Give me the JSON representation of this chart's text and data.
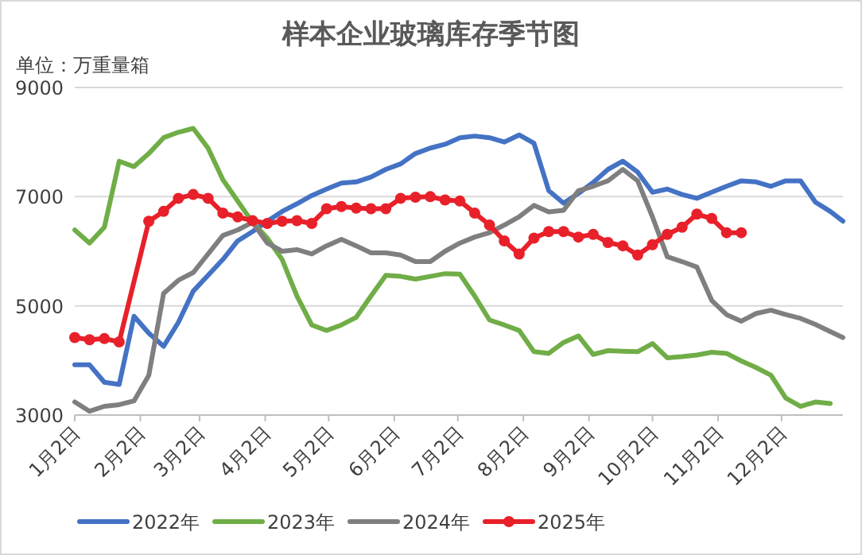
{
  "chart_data": {
    "type": "line",
    "title": "样本企业玻璃库存季节图",
    "ylabel": "单位：万重量箱",
    "x": [
      "--01-02",
      "--01-09",
      "--01-16",
      "--01-23",
      "--01-30",
      "--02-06",
      "--02-13",
      "--02-20",
      "--02-27",
      "--03-06",
      "--03-13",
      "--03-20",
      "--03-27",
      "--04-03",
      "--04-10",
      "--04-17",
      "--04-24",
      "--05-01",
      "--05-08",
      "--05-15",
      "--05-22",
      "--05-29",
      "--06-05",
      "--06-12",
      "--06-19",
      "--06-26",
      "--07-03",
      "--07-10",
      "--07-17",
      "--07-24",
      "--07-31",
      "--08-07",
      "--08-14",
      "--08-21",
      "--08-28",
      "--09-04",
      "--09-11",
      "--09-18",
      "--09-25",
      "--10-02",
      "--10-09",
      "--10-16",
      "--10-23",
      "--10-30",
      "--11-06",
      "--11-13",
      "--11-20",
      "--11-27",
      "--12-04",
      "--12-11",
      "--12-18",
      "--12-25",
      "--12-31"
    ],
    "xlim": [
      "--01-02",
      "--12-31"
    ],
    "xticks": [
      {
        "value": "--01-02",
        "label": "1月2日"
      },
      {
        "value": "--02-02",
        "label": "2月2日"
      },
      {
        "value": "--03-02",
        "label": "3月2日"
      },
      {
        "value": "--04-02",
        "label": "4月2日"
      },
      {
        "value": "--05-02",
        "label": "5月2日"
      },
      {
        "value": "--06-02",
        "label": "6月2日"
      },
      {
        "value": "--07-02",
        "label": "7月2日"
      },
      {
        "value": "--08-02",
        "label": "8月2日"
      },
      {
        "value": "--09-02",
        "label": "9月2日"
      },
      {
        "value": "--10-02",
        "label": "10月2日"
      },
      {
        "value": "--11-02",
        "label": "11月2日"
      },
      {
        "value": "--12-02",
        "label": "12月2日"
      }
    ],
    "ylim": [
      3000,
      9000
    ],
    "yticks": [
      3000,
      5000,
      7000,
      9000
    ],
    "grid": "y",
    "legend": "bottom",
    "series": [
      {
        "name": "2022年",
        "color": "#4472c4",
        "values": [
          3920,
          3920,
          3600,
          3560,
          4810,
          4500,
          4260,
          4700,
          5270,
          5560,
          5850,
          6190,
          6360,
          6550,
          6730,
          6870,
          7020,
          7140,
          7250,
          7270,
          7360,
          7500,
          7600,
          7790,
          7890,
          7960,
          8080,
          8110,
          8080,
          8000,
          8130,
          7980,
          7110,
          6880,
          7060,
          7260,
          7500,
          7650,
          7450,
          7080,
          7140,
          7040,
          6970,
          7080,
          7190,
          7290,
          7270,
          7190,
          7290,
          7290,
          6900,
          6730,
          6550
        ]
      },
      {
        "name": "2023年",
        "color": "#70ad47",
        "values": [
          6390,
          6150,
          6440,
          7650,
          7550,
          7790,
          8080,
          8180,
          8250,
          7890,
          7310,
          6920,
          6530,
          6240,
          5850,
          5180,
          4650,
          4550,
          4650,
          4790,
          5180,
          5560,
          5540,
          5490,
          5540,
          5590,
          5580,
          5180,
          4740,
          4650,
          4550,
          4160,
          4130,
          4330,
          4450,
          4110,
          4180,
          4170,
          4160,
          4310,
          4050,
          4070,
          4100,
          4150,
          4130,
          3990,
          3870,
          3730,
          3310,
          3160,
          3240,
          3210,
          null
        ]
      },
      {
        "name": "2024年",
        "color": "#7f7f7f",
        "values": [
          3240,
          3070,
          3160,
          3190,
          3260,
          3730,
          5230,
          5470,
          5610,
          5950,
          6290,
          6390,
          6530,
          6150,
          6000,
          6030,
          5950,
          6100,
          6220,
          6100,
          5970,
          5970,
          5930,
          5810,
          5810,
          6000,
          6150,
          6260,
          6340,
          6480,
          6630,
          6840,
          6720,
          6750,
          7110,
          7190,
          7290,
          7500,
          7290,
          6630,
          5900,
          5810,
          5710,
          5100,
          4840,
          4720,
          4860,
          4920,
          4840,
          4770,
          4660,
          4530,
          4420
        ]
      },
      {
        "name": "2025年",
        "color": "#e8202a",
        "marker": "circle",
        "values": [
          4420,
          4380,
          4400,
          4340,
          null,
          6550,
          6730,
          6970,
          7040,
          6970,
          6700,
          6630,
          6560,
          6510,
          6550,
          6560,
          6510,
          6780,
          6820,
          6790,
          6780,
          6780,
          6970,
          6990,
          7000,
          6940,
          6920,
          6700,
          6480,
          6190,
          5950,
          6240,
          6360,
          6360,
          6260,
          6310,
          6160,
          6100,
          5930,
          6120,
          6310,
          6440,
          6680,
          6600,
          6340,
          6340,
          null,
          null,
          null,
          null,
          null,
          null,
          null
        ]
      }
    ]
  }
}
